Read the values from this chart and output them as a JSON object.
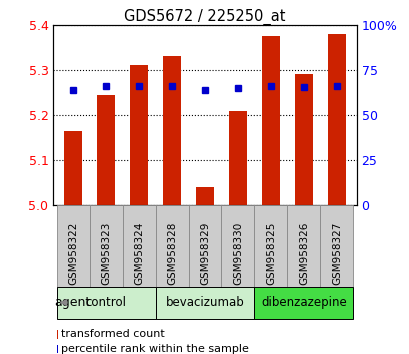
{
  "title": "GDS5672 / 225250_at",
  "samples": [
    "GSM958322",
    "GSM958323",
    "GSM958324",
    "GSM958328",
    "GSM958329",
    "GSM958330",
    "GSM958325",
    "GSM958326",
    "GSM958327"
  ],
  "bar_values": [
    5.165,
    5.245,
    5.31,
    5.33,
    5.04,
    5.21,
    5.375,
    5.29,
    5.38
  ],
  "percentile_values": [
    5.255,
    5.265,
    5.265,
    5.265,
    5.255,
    5.26,
    5.265,
    5.263,
    5.265
  ],
  "bar_color": "#cc2200",
  "percentile_color": "#0000cc",
  "ymin": 5.0,
  "ymax": 5.4,
  "yticks": [
    5.0,
    5.1,
    5.2,
    5.3,
    5.4
  ],
  "right_yticks": [
    0,
    25,
    50,
    75,
    100
  ],
  "groups": [
    {
      "label": "control",
      "start": 0,
      "end": 3,
      "color": "#cceecc"
    },
    {
      "label": "bevacizumab",
      "start": 3,
      "end": 6,
      "color": "#cceecc"
    },
    {
      "label": "dibenzazepine",
      "start": 6,
      "end": 9,
      "color": "#44dd44"
    }
  ],
  "legend_items": [
    {
      "label": "transformed count",
      "color": "#cc2200"
    },
    {
      "label": "percentile rank within the sample",
      "color": "#0000cc"
    }
  ],
  "agent_label": "agent",
  "bar_width": 0.55,
  "background_color": "#ffffff",
  "label_box_color": "#cccccc",
  "label_box_edge": "#888888"
}
